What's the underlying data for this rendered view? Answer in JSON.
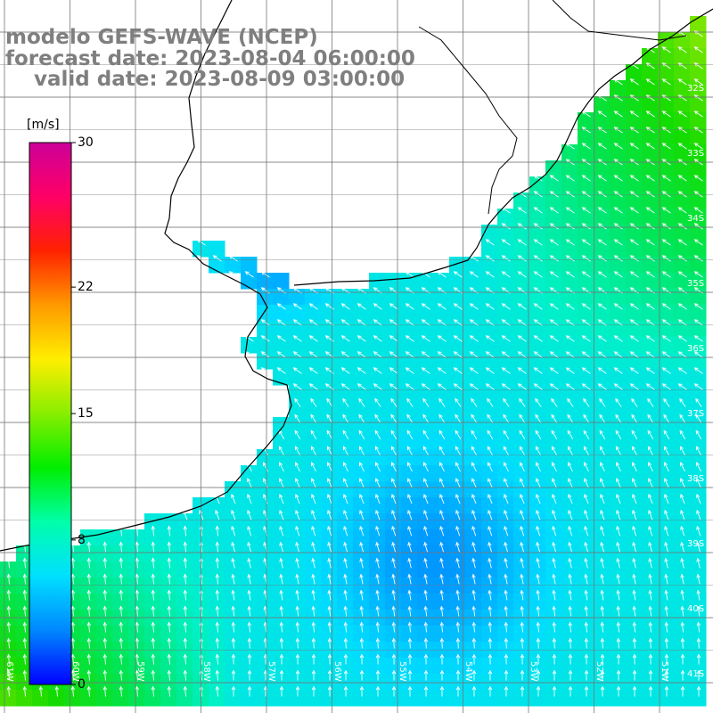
{
  "title": {
    "line1": "modelo GEFS-WAVE (NCEP)",
    "line2": "forecast date: 2023-08-04 06:00:00",
    "line3": "    valid date: 2023-08-09 03:00:00"
  },
  "colorbar": {
    "unit": "[m/s]",
    "ticks": [
      {
        "label": "30",
        "value": 30
      },
      {
        "label": "22",
        "value": 22
      },
      {
        "label": "15",
        "value": 15
      },
      {
        "label": "8",
        "value": 8
      },
      {
        "label": "0",
        "value": 0
      }
    ],
    "colors": [
      "#0000ff",
      "#0088ff",
      "#00e0ff",
      "#00ffaa",
      "#00ee00",
      "#88ee00",
      "#ffee00",
      "#ff9900",
      "#ff2200",
      "#ff0066",
      "#cc0099"
    ]
  },
  "map": {
    "lon_labels": [
      "61W",
      "60W",
      "59W",
      "58W",
      "57W",
      "56W",
      "55W",
      "54W",
      "53W",
      "52W",
      "51W"
    ],
    "lat_labels": [
      "32S",
      "33S",
      "34S",
      "35S",
      "36S",
      "37S",
      "38S",
      "39S",
      "40S",
      "41S"
    ],
    "land_color": "#ffffff",
    "arrow_color": "#ffffff",
    "grid_color": "#777777"
  }
}
